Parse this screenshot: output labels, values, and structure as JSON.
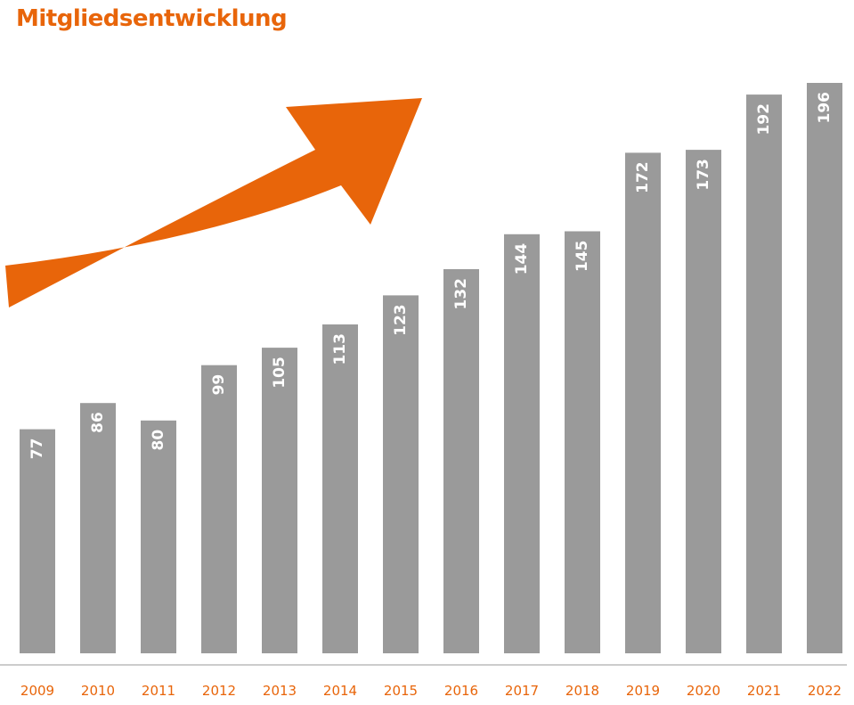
{
  "accent_color": "#e8650a",
  "bar_color": "#9a9a9a",
  "baseline_color": "#9a9a9a",
  "decoration": "upward-trend-arrow-icon",
  "chart_data": {
    "type": "bar",
    "title": "Mitgliedsentwicklung",
    "xlabel": "",
    "ylabel": "",
    "categories": [
      "2009",
      "2010",
      "2011",
      "2012",
      "2013",
      "2014",
      "2015",
      "2016",
      "2017",
      "2018",
      "2019",
      "2020",
      "2021",
      "2022"
    ],
    "values": [
      77,
      86,
      80,
      99,
      105,
      113,
      123,
      132,
      144,
      145,
      172,
      173,
      192,
      196
    ],
    "ylim": [
      0,
      196
    ],
    "grid": false,
    "legend": "none",
    "data_labels": "inside-top-rotated"
  }
}
